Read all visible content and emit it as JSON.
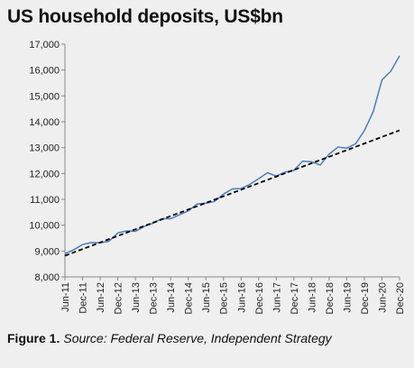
{
  "caption": {
    "figure_label": "Figure 1.",
    "source_text": "Source: Federal Reserve, Independent Strategy"
  },
  "colors": {
    "background": "#efefef",
    "series": "#4a7ebb",
    "trend": "#000000",
    "axis": "#888888"
  },
  "chart_data": {
    "type": "line",
    "title": "US household deposits, US$bn",
    "xlabel": "",
    "ylabel": "",
    "ylim": [
      8000,
      17000
    ],
    "yticks": [
      8000,
      9000,
      10000,
      11000,
      12000,
      13000,
      14000,
      15000,
      16000,
      17000
    ],
    "ytick_labels": [
      "8,000",
      "9,000",
      "10,000",
      "11,000",
      "12,000",
      "13,000",
      "14,000",
      "15,000",
      "16,000",
      "17,000"
    ],
    "xlim": [
      "Jun-11",
      "Dec-20"
    ],
    "xtick_labels": [
      "Jun-11",
      "Dec-11",
      "Jun-12",
      "Dec-12",
      "Jun-13",
      "Dec-13",
      "Jun-14",
      "Dec-14",
      "Jun-15",
      "Dec-15",
      "Jun-16",
      "Dec-16",
      "Jun-17",
      "Dec-17",
      "Jun-18",
      "Dec-18",
      "Jun-19",
      "Dec-19",
      "Jun-20",
      "Dec-20"
    ],
    "grid": false,
    "legend": "none",
    "series": [
      {
        "style": "solid",
        "x": [
          "Jun-11",
          "Sep-11",
          "Dec-11",
          "Mar-12",
          "Jun-12",
          "Sep-12",
          "Dec-12",
          "Mar-13",
          "Jun-13",
          "Sep-13",
          "Dec-13",
          "Mar-14",
          "Jun-14",
          "Sep-14",
          "Dec-14",
          "Mar-15",
          "Jun-15",
          "Sep-15",
          "Dec-15",
          "Mar-16",
          "Jun-16",
          "Sep-16",
          "Dec-16",
          "Mar-17",
          "Jun-17",
          "Sep-17",
          "Dec-17",
          "Mar-18",
          "Jun-18",
          "Sep-18",
          "Dec-18",
          "Mar-19",
          "Jun-19",
          "Sep-19",
          "Dec-19",
          "Mar-20",
          "Jun-20",
          "Sep-20",
          "Dec-20"
        ],
        "values": [
          8900,
          9050,
          9250,
          9330,
          9320,
          9380,
          9700,
          9780,
          9760,
          9950,
          10080,
          10250,
          10250,
          10400,
          10550,
          10820,
          10850,
          10920,
          11200,
          11400,
          11420,
          11580,
          11800,
          12030,
          11900,
          12050,
          12120,
          12480,
          12450,
          12330,
          12750,
          13020,
          12980,
          13150,
          13650,
          14380,
          15620,
          15950,
          16550
        ]
      },
      {
        "style": "dashed",
        "x": [
          "Jun-11",
          "Dec-20"
        ],
        "values": [
          8820,
          13670
        ]
      }
    ]
  }
}
